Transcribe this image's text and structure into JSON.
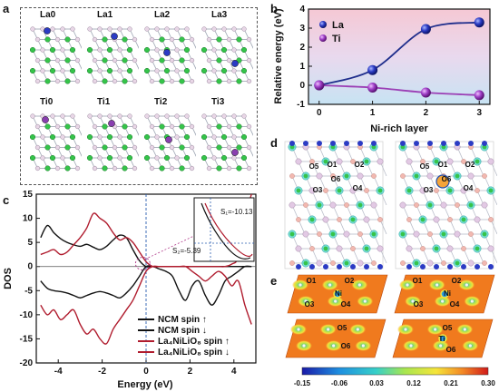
{
  "panels": {
    "a": {
      "letter": "a",
      "structures": [
        "La0",
        "La1",
        "La2",
        "La3",
        "Ti0",
        "Ti1",
        "Ti2",
        "Ti3"
      ]
    },
    "b": {
      "letter": "b"
    },
    "c": {
      "letter": "c",
      "annotations": {
        "s1": "S₁=-10.13",
        "s2": "S₂=-5.39"
      }
    },
    "d": {
      "letter": "d",
      "left_labels": [
        "O5",
        "O1",
        "O2",
        "O3",
        "O6",
        "O4"
      ],
      "right_labels": [
        "O5",
        "O1",
        "O2",
        "O3",
        "O6",
        "O4"
      ]
    },
    "e": {
      "letter": "e",
      "top_left_labels": [
        "O1",
        "O2",
        "Ni",
        "O3",
        "O4"
      ],
      "top_right_labels": [
        "O1",
        "O2",
        "Ni",
        "O3",
        "O4"
      ],
      "bottom_left_labels": [
        "O5",
        "O6"
      ],
      "bottom_right_labels": [
        "O5",
        "Ti",
        "O6"
      ],
      "colorbar_ticks": [
        "-0.15",
        "-0.06",
        "0.03",
        "0.12",
        "0.21",
        "0.30"
      ]
    }
  },
  "chart_data": [
    {
      "type": "line",
      "panel": "b",
      "xlabel": "Ni-rich layer",
      "ylabel": "Relative energy (eV)",
      "x": [
        0,
        1,
        2,
        3
      ],
      "xlim": [
        -0.2,
        3.2
      ],
      "ylim": [
        -1,
        4
      ],
      "xticks": [
        "0",
        "1",
        "2",
        "3"
      ],
      "yticks": [
        "-1",
        "0",
        "1",
        "2",
        "3",
        "4"
      ],
      "legend": "top-left",
      "series": [
        {
          "name": "La",
          "values": [
            0.0,
            0.8,
            2.95,
            3.3
          ],
          "color": "#1f2e8c"
        },
        {
          "name": "Ti",
          "values": [
            0.0,
            -0.12,
            -0.38,
            -0.52
          ],
          "color": "#9b3fb5"
        }
      ]
    },
    {
      "type": "line",
      "panel": "c",
      "xlabel": "Energy (eV)",
      "ylabel": "DOS",
      "xlim": [
        -5,
        5
      ],
      "ylim": [
        -20,
        15
      ],
      "xticks": [
        "-4",
        "-2",
        "0",
        "2",
        "4"
      ],
      "yticks": [
        "-20",
        "-15",
        "-10",
        "-5",
        "0",
        "5",
        "10",
        "15"
      ],
      "legend": "bottom-right",
      "series": [
        {
          "name": "NCM spin ↑",
          "color": "#111111",
          "x": [
            -4.8,
            -4.5,
            -4.2,
            -3.9,
            -3.6,
            -3.3,
            -3.0,
            -2.7,
            -2.4,
            -2.1,
            -1.8,
            -1.5,
            -1.2,
            -0.9,
            -0.6,
            -0.3,
            0.0,
            0.3,
            0.6,
            0.9,
            1.2,
            1.5,
            1.8,
            2.1,
            2.4,
            2.7,
            3.0,
            3.3,
            3.6,
            3.9,
            4.2,
            4.5,
            4.8
          ],
          "values": [
            6,
            8.5,
            7,
            5.8,
            5,
            4.5,
            4.2,
            4.6,
            4.0,
            3.5,
            4.2,
            5.5,
            6.5,
            6.0,
            3.5,
            1.2,
            0,
            0,
            0,
            0,
            0,
            0,
            0,
            0,
            0,
            0,
            0,
            0,
            0,
            0,
            0,
            0,
            0
          ]
        },
        {
          "name": "NCM spin ↓",
          "color": "#111111",
          "x": [
            -4.8,
            -4.5,
            -4.2,
            -3.9,
            -3.6,
            -3.3,
            -3.0,
            -2.7,
            -2.4,
            -2.1,
            -1.8,
            -1.5,
            -1.2,
            -0.9,
            -0.6,
            -0.3,
            0.0,
            0.3,
            0.6,
            0.9,
            1.2,
            1.5,
            1.8,
            2.1,
            2.4,
            2.7,
            3.0,
            3.3,
            3.6,
            3.9,
            4.2,
            4.5,
            4.8
          ],
          "values": [
            -3,
            -4.5,
            -5,
            -5.2,
            -5.5,
            -6,
            -6.5,
            -6,
            -5.5,
            -5.2,
            -5.5,
            -6,
            -6.5,
            -5.5,
            -4,
            -2,
            0,
            0,
            -0.5,
            -1,
            -2,
            -5,
            -7,
            -4,
            -3,
            -6,
            -8,
            -6,
            -3,
            -2,
            -1,
            0,
            0
          ]
        },
        {
          "name": "La₄NiLiO₈ spin ↑",
          "color": "#b01c2e",
          "x": [
            -4.8,
            -4.5,
            -4.2,
            -3.9,
            -3.6,
            -3.3,
            -3.0,
            -2.7,
            -2.4,
            -2.1,
            -1.8,
            -1.5,
            -1.2,
            -0.9,
            -0.6,
            -0.3,
            0.0,
            0.3,
            0.6,
            0.9,
            1.2,
            1.5,
            1.8,
            2.1,
            2.4,
            2.7,
            3.0,
            3.3,
            3.6,
            3.9,
            4.2,
            4.5,
            4.8
          ],
          "values": [
            2.5,
            3,
            3.5,
            2.5,
            3,
            4.5,
            6,
            8,
            11,
            10,
            9,
            7,
            5.5,
            6,
            5,
            3,
            1,
            0,
            0,
            0,
            0,
            0,
            0,
            0,
            0,
            0,
            0,
            0,
            0,
            0.5,
            2,
            10,
            15
          ]
        },
        {
          "name": "La₄NiLiO₈ spin ↓",
          "color": "#b01c2e",
          "x": [
            -4.8,
            -4.5,
            -4.2,
            -3.9,
            -3.6,
            -3.3,
            -3.0,
            -2.7,
            -2.4,
            -2.1,
            -1.8,
            -1.5,
            -1.2,
            -0.9,
            -0.6,
            -0.3,
            0.0,
            0.3,
            0.6,
            0.9,
            1.2,
            1.5,
            1.8,
            2.1,
            2.4,
            2.7,
            3.0,
            3.3,
            3.6,
            3.9,
            4.2,
            4.5,
            4.8
          ],
          "values": [
            -8,
            -10,
            -9,
            -11,
            -10,
            -9,
            -12,
            -14,
            -13,
            -15,
            -16,
            -13,
            -11,
            -9,
            -7,
            -4,
            -1,
            0,
            0,
            0,
            0,
            0,
            0,
            -1,
            -2,
            -3,
            -2,
            -1,
            -2,
            -4,
            -3,
            -8,
            -12
          ]
        }
      ]
    }
  ]
}
